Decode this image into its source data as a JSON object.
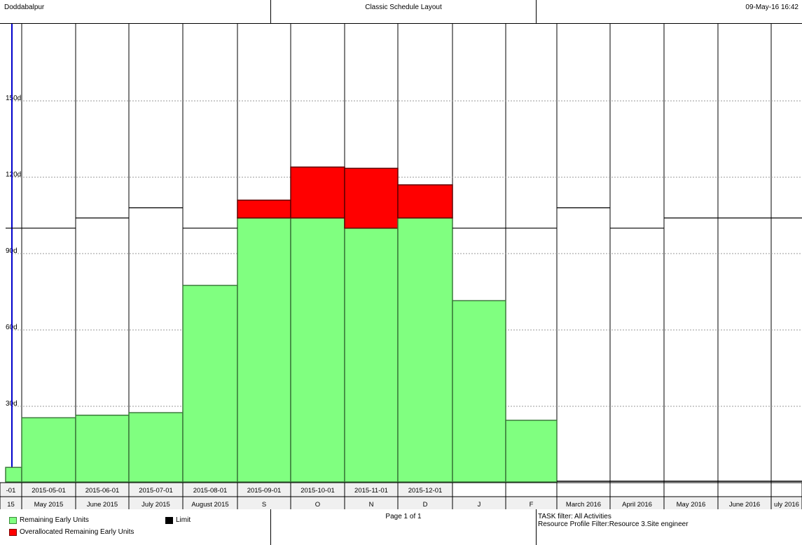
{
  "header": {
    "project": "Doddabalpur",
    "layout_name": "Classic Schedule Layout",
    "timestamp": "09-May-16 16:42"
  },
  "footer": {
    "page": "Page 1 of 1",
    "task_filter": "TASK filter: All Activities",
    "profile_filter": "Resource Profile Filter:Resource 3.Site engineer"
  },
  "colors": {
    "remaining": "#80ff80",
    "overallocated": "#ff0000",
    "limit": "#000000",
    "axis": "#0000cc"
  },
  "chart_data": {
    "type": "bar",
    "ylabel_unit": "d",
    "ylim": [
      0,
      180
    ],
    "yticks": [
      {
        "value": 30,
        "label": "30d"
      },
      {
        "value": 60,
        "label": "60d"
      },
      {
        "value": 90,
        "label": "90d"
      },
      {
        "value": 120,
        "label": "120d"
      },
      {
        "value": 150,
        "label": "150d"
      }
    ],
    "grid": true,
    "categories_row1": [
      "-01",
      "2015-05-01",
      "2015-06-01",
      "2015-07-01",
      "2015-08-01",
      "2015-09-01",
      "2015-10-01",
      "2015-11-01",
      "2015-12-01",
      "",
      "",
      "",
      "",
      "",
      "",
      ""
    ],
    "categories_row2": [
      "15",
      "May 2015",
      "June 2015",
      "July 2015",
      "August 2015",
      "S",
      "O",
      "N",
      "D",
      "J",
      "F",
      "March 2016",
      "April 2016",
      "May 2016",
      "June 2016",
      "uly 2016"
    ],
    "series": [
      {
        "name": "Remaining Early Units",
        "values": [
          6,
          25.5,
          26.5,
          27.5,
          77.5,
          104,
          104,
          100,
          104,
          71.5,
          24.5,
          0,
          0,
          0,
          0,
          0
        ]
      },
      {
        "name": "Overallocated Remaining Early Units",
        "values": [
          0,
          0,
          0,
          0,
          0,
          7,
          20,
          23.5,
          13,
          0,
          0,
          0,
          0,
          0,
          0,
          0
        ]
      }
    ],
    "limit": {
      "name": "Limit",
      "values": [
        100,
        100,
        104,
        108,
        100,
        0,
        0,
        0,
        0,
        100,
        100,
        108,
        100,
        104,
        104,
        104
      ]
    },
    "legend": [
      {
        "label": "Remaining Early Units",
        "color": "#80ff80"
      },
      {
        "label": "Overallocated Remaining Early Units",
        "color": "#ff0000"
      },
      {
        "label": "Limit",
        "color": "#000000"
      }
    ],
    "legend_position": "bottom-left"
  }
}
